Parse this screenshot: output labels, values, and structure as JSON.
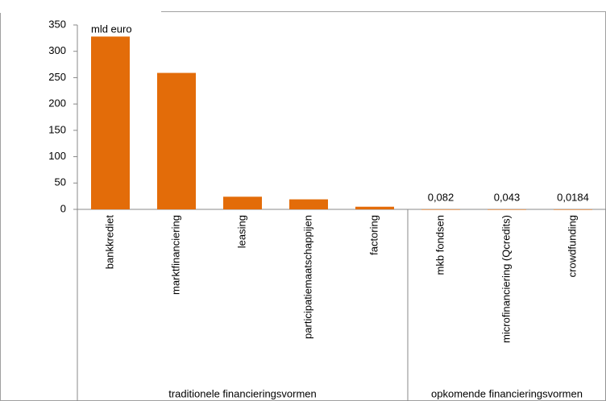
{
  "chart_data": {
    "type": "bar",
    "annotation": "mld euro",
    "categories": [
      "bankkrediet",
      "marktfinanciering",
      "leasing",
      "participatiemaatschappijen",
      "factoring",
      "mkb fondsen",
      "microfinanciering (Qcredits)",
      "crowdfunding"
    ],
    "values": [
      328,
      259,
      24,
      19,
      5,
      0.082,
      0.043,
      0.0184
    ],
    "value_labels": [
      null,
      null,
      null,
      null,
      null,
      "0,082",
      "0,043",
      "0,0184"
    ],
    "groups": [
      {
        "name": "traditionele financieringsvormen",
        "count": 5
      },
      {
        "name": "opkomende financieringsvormen",
        "count": 3
      }
    ],
    "color": "#e36c09",
    "ylim": [
      0,
      350
    ],
    "yticks": [
      0,
      50,
      100,
      150,
      200,
      250,
      300,
      350
    ],
    "grid": false
  }
}
